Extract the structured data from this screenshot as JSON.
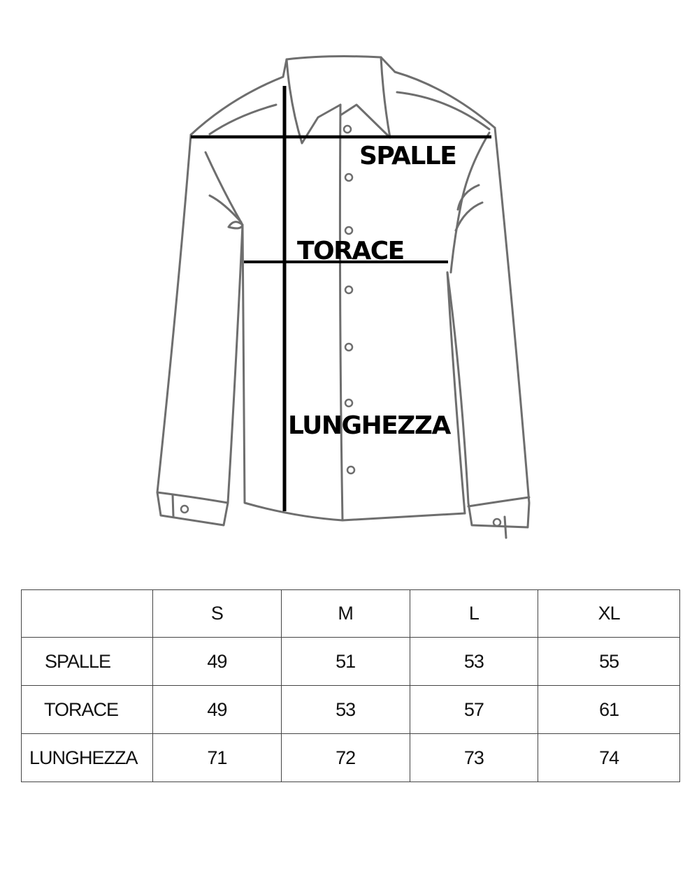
{
  "diagram": {
    "labels": {
      "shoulders": "SPALLE",
      "chest": "TORACE",
      "length": "LUNGHEZZA"
    },
    "stroke_color": "#6e6e6e",
    "measure_color": "#000000"
  },
  "size_table": {
    "columns": [
      "",
      "S",
      "M",
      "L",
      "XL"
    ],
    "rows": [
      {
        "label": "SPALLE",
        "values": [
          "49",
          "51",
          "53",
          "55"
        ]
      },
      {
        "label": "TORACE",
        "values": [
          "49",
          "53",
          "57",
          "61"
        ]
      },
      {
        "label": "LUNGHEZZA",
        "values": [
          "71",
          "72",
          "73",
          "74"
        ]
      }
    ]
  }
}
